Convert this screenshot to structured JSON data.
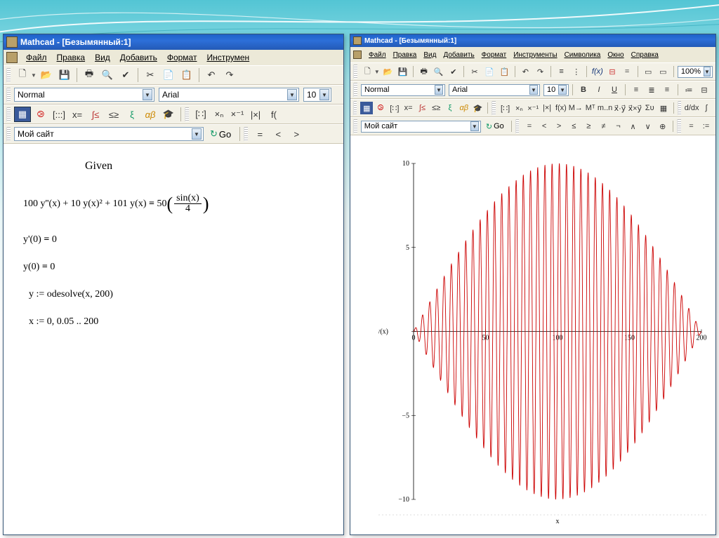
{
  "bg_accent": "#53c5d4",
  "left": {
    "title": "Mathcad - [Безымянный:1]",
    "menus": [
      "Файл",
      "Правка",
      "Вид",
      "Добавить",
      "Формат",
      "Инструмен"
    ],
    "style_combo": "Normal",
    "font_combo": "Arial",
    "size_combo": "10",
    "site_combo": "Мой сайт",
    "go_label": "Go",
    "math": {
      "given": "Given",
      "eq1": "100 y''(x) + 10 y(x)² + 101 y(x)",
      "eq1_rhs": "50",
      "frac_n": "sin(x)",
      "frac_d": "4",
      "eq2": "y'(0)",
      "eq2_r": "0",
      "eq3": "y(0)",
      "eq3_r": "0",
      "eq4": "y := odesolve(x, 200)",
      "eq5": "x := 0, 0.05 .. 200"
    }
  },
  "right": {
    "title": "Mathcad - [Безымянный:1]",
    "menus": [
      "Файл",
      "Правка",
      "Вид",
      "Добавить",
      "Формат",
      "Инструменты",
      "Символика",
      "Окно",
      "Справка"
    ],
    "style_combo": "Normal",
    "font_combo": "Arial",
    "size_combo": "10",
    "zoom": "100%",
    "site_combo": "Мой сайт",
    "go_label": "Go",
    "chart": {
      "type": "line",
      "xlabel": "x",
      "ylabel": "y(x)",
      "xlim": [
        0,
        200
      ],
      "ylim": [
        -10,
        10
      ],
      "xtick_step": 50,
      "ytick_step": 5,
      "line_color": "#cc0000",
      "axis_color": "#000000",
      "background": "#ffffff",
      "label_fontsize": 10,
      "envelope": "sin(pi*x/200)*10",
      "carrier_cycles": 40
    }
  }
}
